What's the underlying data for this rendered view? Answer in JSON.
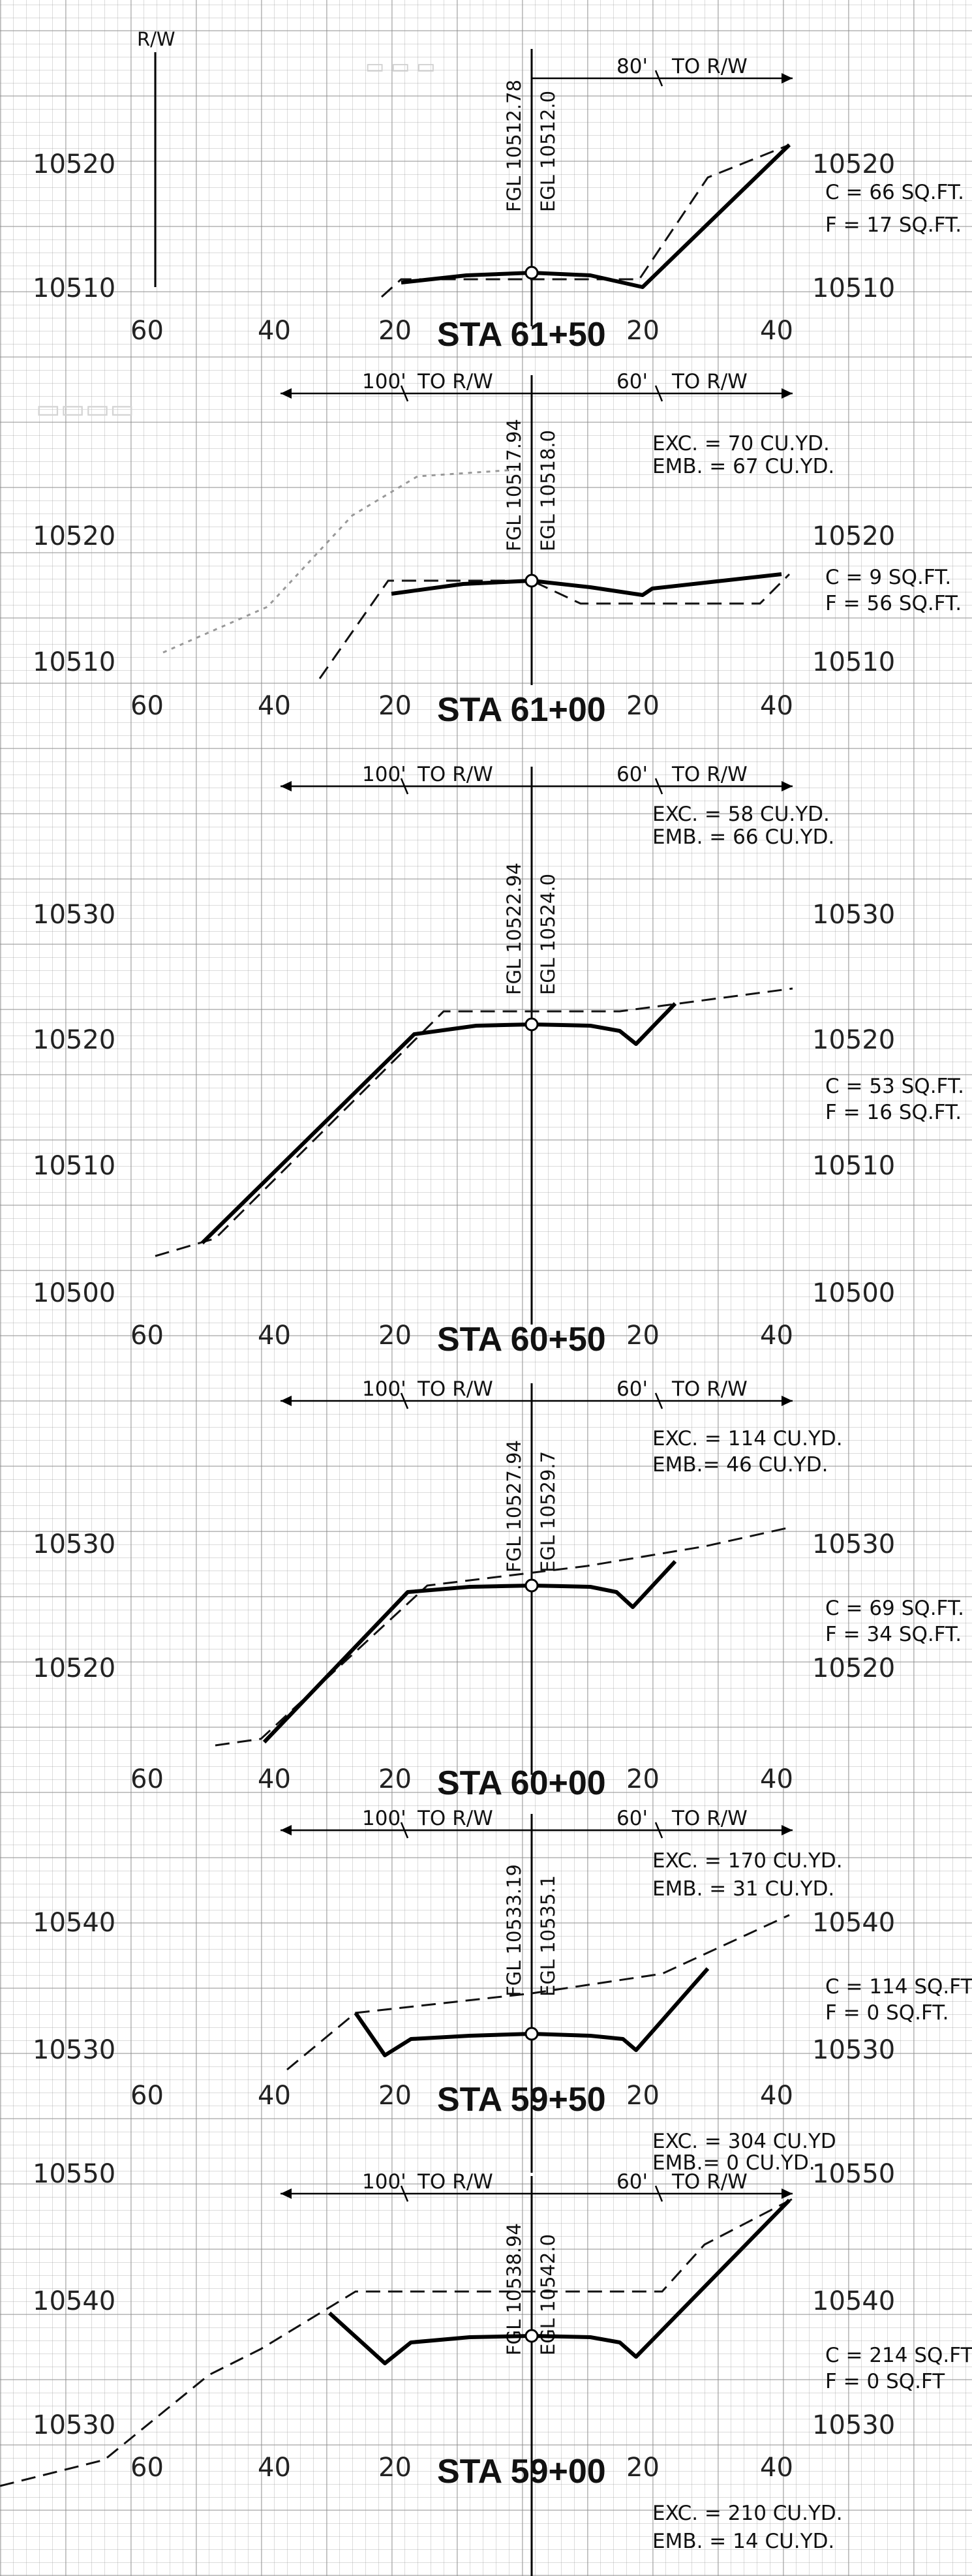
{
  "header": {
    "rw_label": "R/W"
  },
  "offsets": [
    "60",
    "40",
    "20",
    "20",
    "40"
  ],
  "sections": [
    {
      "station": "STA 61+50",
      "fgl": "FGL 10512.78",
      "egl": "EGL 10512.0",
      "left_rw": "",
      "right_rw": "80'",
      "to_rw": "TO R/W",
      "elev_left": [
        "10520",
        "10510"
      ],
      "elev_right": [
        "10520",
        "10510"
      ],
      "areas": [
        "C = 66 SQ.FT.",
        "F = 17 SQ.FT."
      ],
      "volumes": []
    },
    {
      "station": "STA 61+00",
      "fgl": "FGL 10517.94",
      "egl": "EGL 10518.0",
      "left_rw": "100'",
      "right_rw": "60'",
      "to_rw": "TO R/W",
      "elev_left": [
        "10520",
        "10510"
      ],
      "elev_right": [
        "10520",
        "10510"
      ],
      "areas": [
        "C = 9 SQ.FT.",
        "F = 56 SQ.FT."
      ],
      "volumes": [
        "EXC. = 70 CU.YD.",
        "EMB. = 67 CU.YD."
      ]
    },
    {
      "station": "STA 60+50",
      "fgl": "FGL 10522.94",
      "egl": "EGL 10524.0",
      "left_rw": "100'",
      "right_rw": "60'",
      "to_rw": "TO R/W",
      "elev_left": [
        "10530",
        "10520",
        "10510",
        "10500"
      ],
      "elev_right": [
        "10530",
        "10520",
        "10510",
        "10500"
      ],
      "areas": [
        "C = 53 SQ.FT.",
        "F = 16 SQ.FT."
      ],
      "volumes": [
        "EXC. = 58 CU.YD.",
        "EMB. = 66 CU.YD."
      ]
    },
    {
      "station": "STA 60+00",
      "fgl": "FGL 10527.94",
      "egl": "EGL 10529.7",
      "left_rw": "100'",
      "right_rw": "60'",
      "to_rw": "TO R/W",
      "elev_left": [
        "10530",
        "10520"
      ],
      "elev_right": [
        "10530",
        "10520"
      ],
      "areas": [
        "C = 69 SQ.FT.",
        "F = 34 SQ.FT."
      ],
      "volumes": [
        "EXC. = 114 CU.YD.",
        "EMB.= 46 CU.YD."
      ]
    },
    {
      "station": "STA 59+50",
      "fgl": "FGL 10533.19",
      "egl": "EGL 10535.1",
      "left_rw": "100'",
      "right_rw": "60'",
      "to_rw": "TO R/W",
      "elev_left": [
        "10540",
        "10530"
      ],
      "elev_right": [
        "10540",
        "10530"
      ],
      "areas": [
        "C = 114 SQ.FT.",
        "F = 0 SQ.FT."
      ],
      "volumes": [
        "EXC. = 170 CU.YD.",
        "EMB. = 31 CU.YD."
      ]
    },
    {
      "station": "STA 59+00",
      "fgl": "FGL 10538.94",
      "egl": "EGL 10542.0",
      "left_rw": "100'",
      "right_rw": "60'",
      "to_rw": "TO R/W",
      "elev_left": [
        "10550",
        "10540",
        "10530"
      ],
      "elev_right": [
        "10550",
        "10540",
        "10530"
      ],
      "areas": [
        "C = 214 SQ.FT.",
        "F = 0 SQ.FT"
      ],
      "volumes": [
        "EXC. = 304 CU.YD",
        "EMB.= 0 CU.YD."
      ]
    }
  ],
  "footer": {
    "volumes": [
      "EXC. = 210 CU.YD.",
      "EMB. = 14 CU.YD."
    ]
  }
}
